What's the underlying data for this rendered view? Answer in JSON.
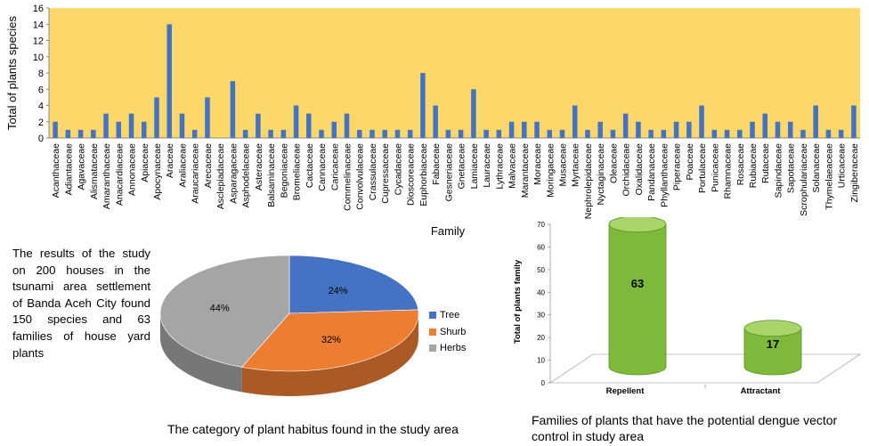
{
  "colors": {
    "plot_bg": "#fcd86a",
    "bar": "#4472c4",
    "pie_tree": "#4472c4",
    "pie_shrub": "#ed7d31",
    "pie_herbs": "#a5a5a5",
    "cylinder": "#7dba3b",
    "cylinder_top": "#a8d468"
  },
  "summary_text": "The results of the study on 200 houses in the tsunami area settlement of Banda Aceh City found 150 species and 63 families of house yard plants",
  "chart_data": [
    {
      "type": "bar",
      "title": "",
      "xlabel": "Family",
      "ylabel": "Total of plants species",
      "ylim": [
        0,
        16
      ],
      "yticks": [
        0,
        2,
        4,
        6,
        8,
        10,
        12,
        14,
        16
      ],
      "grid": false,
      "categories": [
        "Acanthaceae",
        "Adiantaceae",
        "Agavaceae",
        "Alismataceae",
        "Amaranthaceae",
        "Anacardiaceae",
        "Annonaceae",
        "Apiaceae",
        "Apocynaceae",
        "Araceae",
        "Araliaceae",
        "Araucariaceae",
        "Arecaceae",
        "Asclepiadaceae",
        "Asparagaceae",
        "Asphodelaceae",
        "Asteraceae",
        "Balsaminaceae",
        "Begoniaceae",
        "Bromeliaceae",
        "Cactaceae",
        "Cannaceae",
        "Caricaceae",
        "Commelinaceae",
        "Convolvulaceae",
        "Crassulaceae",
        "Cupressaceae",
        "Cycadaceae",
        "Dioscoreaceae",
        "Euphorbiaceae",
        "Fabaceae",
        "Gesneriaceae",
        "Gnetaceae",
        "Lamiaceae",
        "Lauraceae",
        "Lythraceae",
        "Malvaceae",
        "Marantaceae",
        "Moraceae",
        "Moringaceae",
        "Musaceae",
        "Myrtaceae",
        "Nephrolepidaceae",
        "Nyctaginaceae",
        "Oleaceae",
        "Orchidaceae",
        "Oxalidaceae",
        "Pandanaceae",
        "Phyllanthaceae",
        "Piperaceae",
        "Poaceae",
        "Portulaceae",
        "Punicaceae",
        "Rhamnaceae",
        "Rosaceae",
        "Rubiaceae",
        "Rutaceae",
        "Sapindaceae",
        "Sapotaceae",
        "Scrophulariaceae",
        "Solanaceae",
        "Thymelaeaceae",
        "Urticaceae",
        "Zingiberaceae"
      ],
      "values": [
        2,
        1,
        1,
        1,
        3,
        2,
        3,
        2,
        5,
        14,
        3,
        1,
        5,
        0,
        7,
        1,
        3,
        1,
        1,
        4,
        3,
        1,
        2,
        3,
        1,
        1,
        1,
        1,
        1,
        8,
        4,
        1,
        1,
        6,
        1,
        1,
        2,
        2,
        2,
        1,
        1,
        4,
        1,
        2,
        1,
        3,
        2,
        1,
        1,
        2,
        2,
        4,
        1,
        1,
        1,
        2,
        3,
        2,
        2,
        1,
        4,
        1,
        1,
        4
      ]
    },
    {
      "type": "pie",
      "title": "The category of plant habitus found in the study area",
      "labels": [
        "Tree",
        "Shurb",
        "Herbs"
      ],
      "values": [
        24,
        32,
        44
      ],
      "value_labels": [
        "24%",
        "32%",
        "44%"
      ],
      "legend_position": "right"
    },
    {
      "type": "bar",
      "style": "3d-cylinder",
      "title": "Families of plants that have the potential dengue vector control in study area",
      "ylabel": "Total of plants family",
      "ylim": [
        0,
        70
      ],
      "yticks": [
        0,
        10,
        20,
        30,
        40,
        50,
        60,
        70
      ],
      "categories": [
        "Repellent",
        "Attractant"
      ],
      "values": [
        63,
        17
      ],
      "value_labels": [
        "63",
        "17"
      ]
    }
  ]
}
